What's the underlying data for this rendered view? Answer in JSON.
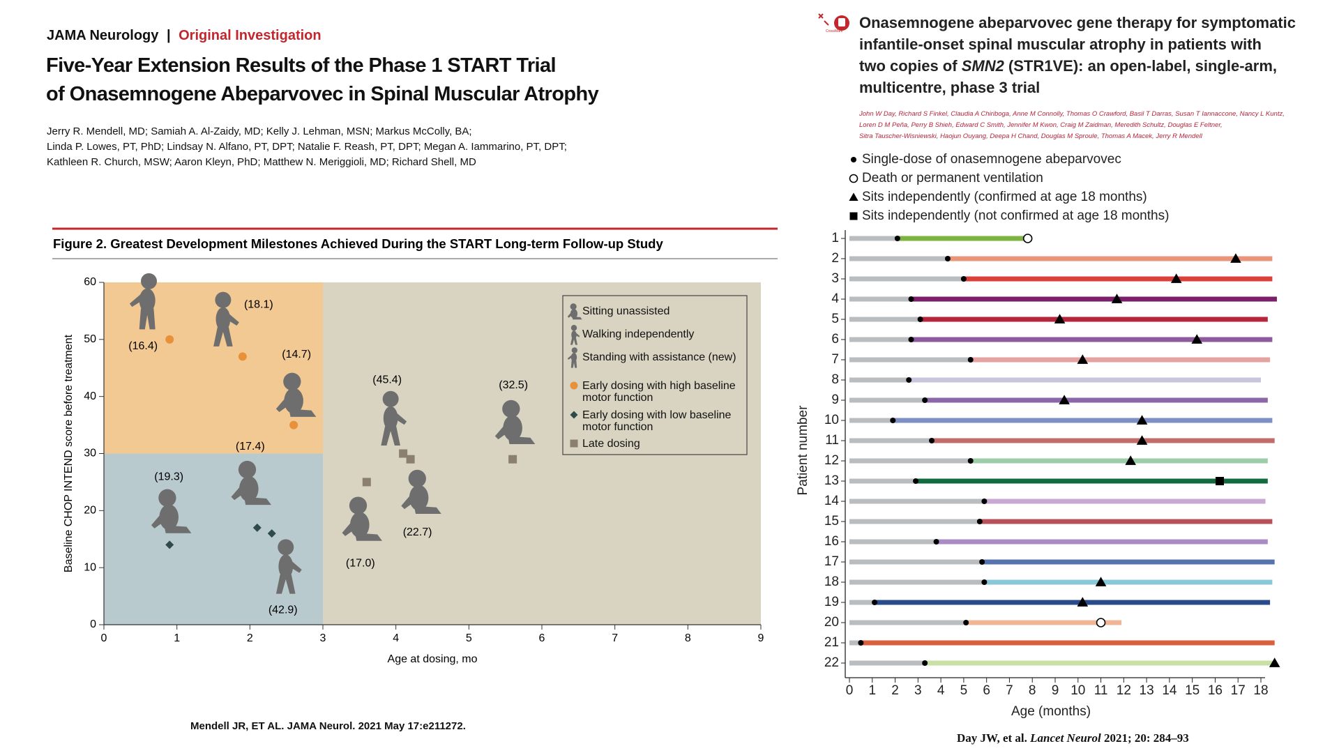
{
  "left_paper": {
    "journal": "JAMA Neurology",
    "separator": "|",
    "section": "Original Investigation",
    "title_lines": [
      "Five-Year Extension Results of the Phase 1 START Trial",
      "of Onasemnogene Abeparvovec in Spinal Muscular Atrophy"
    ],
    "authors": [
      "Jerry R. Mendell, MD; Samiah A. Al-Zaidy, MD; Kelly J. Lehman, MSN; Markus McColly, BA;",
      "Linda P. Lowes, PT, PhD; Lindsay N. Alfano, PT, DPT; Natalie F. Reash, PT, DPT; Megan A. Iammarino, PT, DPT;",
      "Kathleen R. Church, MSW; Aaron Kleyn, PhD; Matthew N. Meriggioli, MD; Richard Shell, MD"
    ],
    "citation": "Mendell JR, ET AL. JAMA Neurol. 2021 May 17:e211272."
  },
  "right_paper": {
    "crossmark": "CrossMark",
    "title_lines": [
      [
        "Onasemnogene abeparvovec gene therapy for symptomatic"
      ],
      [
        "infantile-onset spinal muscular atrophy in patients with"
      ],
      [
        "two copies of ",
        "SMN2",
        " (STR1VE): an open-label, single-arm,"
      ],
      [
        "multicentre, phase 3 trial"
      ]
    ],
    "authors": [
      "John W Day, Richard S Finkel, Claudia A Chiriboga, Anne M Connolly, Thomas O Crawford, Basil T Darras, Susan T Iannaccone, Nancy L Kuntz,",
      "Loren D M Peña, Perry B Shieh, Edward C Smith, Jennifer M Kwon, Craig M Zaidman, Meredith Schultz, Douglas E Feltner,",
      "Sitra Tauscher-Wisniewski, Haojun Ouyang, Deepa H Chand, Douglas M Sproule, Thomas A Macek, Jerry R Mendell"
    ],
    "citation_parts": [
      "Day JW, et al. ",
      "Lancet Neurol",
      " 2021; 20: 284–93"
    ]
  },
  "chart_data": [
    {
      "type": "scatter",
      "title": "Figure 2. Greatest Development Milestones Achieved During the START Long-term Follow-up Study",
      "xlabel": "Age at dosing, mo",
      "ylabel": "Baseline CHOP INTEND score before treatment",
      "xlim": [
        0,
        9
      ],
      "xticks": [
        0,
        1,
        2,
        3,
        4,
        5,
        6,
        7,
        8,
        9
      ],
      "ylim": [
        0,
        60
      ],
      "yticks": [
        0,
        10,
        20,
        30,
        40,
        50,
        60
      ],
      "regions": [
        {
          "xlim": [
            0,
            3
          ],
          "ylim": [
            30,
            60
          ],
          "color": "#f3c993"
        },
        {
          "xlim": [
            0,
            3
          ],
          "ylim": [
            0,
            30
          ],
          "color": "#b9cacf"
        },
        {
          "xlim": [
            3,
            9
          ],
          "ylim": [
            0,
            60
          ],
          "color": "#d9d4c2"
        }
      ],
      "milestones": [
        "Sitting unassisted",
        "Walking independently",
        "Standing with assistance (new)"
      ],
      "icon_color": "#6e6e6e",
      "legend": "upper right",
      "series": [
        {
          "name": "Early dosing with high baseline motor function",
          "color": "#e8913a",
          "marker": "circle",
          "x": [
            0.9,
            1.9,
            2.6
          ],
          "values": [
            50,
            47,
            35
          ],
          "point_labels": [
            "(16.4)",
            "(18.1)",
            "(14.7)"
          ],
          "milestone": [
            2,
            1,
            0
          ]
        },
        {
          "name": "Early dosing with low baseline motor function",
          "color": "#2f4a4c",
          "marker": "diamond",
          "x": [
            0.9,
            2.1,
            2.3
          ],
          "values": [
            14,
            17,
            16
          ],
          "point_labels": [
            "(19.3)",
            "(17.4)",
            "(42.9)"
          ],
          "milestone": [
            0,
            0,
            1
          ]
        },
        {
          "name": "Late dosing",
          "color": "#8a7f70",
          "marker": "square",
          "x": [
            3.6,
            4.1,
            4.2,
            5.6
          ],
          "values": [
            25,
            30,
            29,
            29
          ],
          "point_labels": [
            "(17.0)",
            "(45.4)",
            "(22.7)",
            "(32.5)"
          ],
          "milestone": [
            0,
            1,
            0,
            0
          ]
        }
      ]
    },
    {
      "type": "swimmer",
      "xlabel": "Age (months)",
      "ylabel": "Patient number",
      "xlim": [
        0,
        18
      ],
      "xticks": [
        0,
        1,
        2,
        3,
        4,
        5,
        6,
        7,
        8,
        9,
        10,
        11,
        12,
        13,
        14,
        15,
        16,
        17,
        18
      ],
      "categories": [
        "1",
        "2",
        "3",
        "4",
        "5",
        "6",
        "7",
        "8",
        "9",
        "10",
        "11",
        "12",
        "13",
        "14",
        "15",
        "16",
        "17",
        "18",
        "19",
        "20",
        "21",
        "22"
      ],
      "baseline_color": "#b9bdc0",
      "colors": [
        "#7cb342",
        "#e8957a",
        "#d9413a",
        "#7b1f6a",
        "#b5253b",
        "#8e5a9e",
        "#e4a3a0",
        "#cbc4dd",
        "#8b67aa",
        "#7d8fc4",
        "#c26b6b",
        "#9ccca8",
        "#126b3f",
        "#c9a8d4",
        "#b5525a",
        "#a98cc4",
        "#5573ad",
        "#88c8d9",
        "#2a4b8a",
        "#f0b594",
        "#d95f3d",
        "#c8dfa5"
      ],
      "follow_up_end": [
        7.8,
        18.5,
        18.5,
        18.7,
        18.3,
        18.5,
        18.4,
        18.0,
        18.3,
        18.5,
        18.6,
        18.3,
        18.3,
        18.2,
        18.5,
        18.3,
        18.6,
        18.5,
        18.4,
        11.9,
        18.6,
        18.5
      ],
      "series": [
        {
          "name": "Single-dose of onasemnogene abeparvovec",
          "marker": "dot",
          "values": [
            2.1,
            4.3,
            5.0,
            2.7,
            3.1,
            2.7,
            5.3,
            2.6,
            3.3,
            1.9,
            3.6,
            5.3,
            2.9,
            5.9,
            5.7,
            3.8,
            5.8,
            5.9,
            1.1,
            5.1,
            0.5,
            3.3
          ]
        },
        {
          "name": "Death or permanent ventilation",
          "marker": "open-circle",
          "values": [
            7.8,
            null,
            null,
            null,
            null,
            null,
            null,
            null,
            null,
            null,
            null,
            null,
            null,
            null,
            null,
            null,
            null,
            null,
            null,
            11.0,
            null,
            null
          ]
        },
        {
          "name": "Sits independently (confirmed at age 18 months)",
          "marker": "triangle",
          "values": [
            null,
            16.9,
            14.3,
            11.7,
            9.2,
            15.2,
            10.2,
            null,
            9.4,
            12.8,
            12.8,
            12.3,
            null,
            null,
            null,
            null,
            null,
            11.0,
            10.2,
            null,
            null,
            18.6
          ]
        },
        {
          "name": "Sits independently (not confirmed at age 18 months)",
          "marker": "square",
          "values": [
            null,
            null,
            null,
            null,
            null,
            null,
            null,
            null,
            null,
            null,
            null,
            null,
            16.2,
            null,
            null,
            null,
            null,
            null,
            null,
            null,
            null,
            null
          ]
        }
      ]
    }
  ]
}
